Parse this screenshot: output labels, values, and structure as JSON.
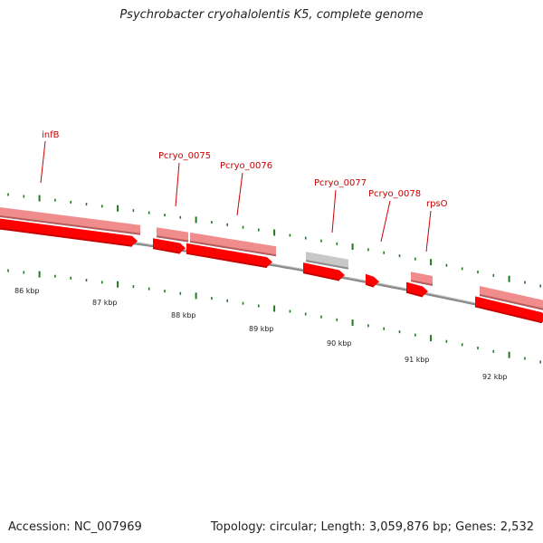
{
  "title": "Psychrobacter cryohalolentis K5, complete genome",
  "accession_text": "Accession: NC_007969",
  "summary_text": "Topology: circular; Length: 3,059,876 bp; Genes: 2,532",
  "colors": {
    "forward_gene": "#f08c8c",
    "forward_gene_edge": "#b25c5c",
    "cds": "#ff0000",
    "cds_dark": "#c80000",
    "hypothetical": "#c8c8c8",
    "backbone": "#888888",
    "tick_green": "#1f7a1f",
    "label_red": "#cc0000"
  },
  "scale_labels": [
    {
      "id": "86",
      "text": "86 kbp"
    },
    {
      "id": "87",
      "text": "87 kbp"
    },
    {
      "id": "88",
      "text": "88 kbp"
    },
    {
      "id": "89",
      "text": "89 kbp"
    },
    {
      "id": "90",
      "text": "90 kbp"
    },
    {
      "id": "91",
      "text": "91 kbp"
    },
    {
      "id": "92",
      "text": "92 kbp"
    }
  ],
  "gene_labels": [
    {
      "id": "infB",
      "text": "infB"
    },
    {
      "id": "pcryo0075",
      "text": "Pcryo_0075"
    },
    {
      "id": "pcryo0076",
      "text": "Pcryo_0076"
    },
    {
      "id": "pcryo0077",
      "text": "Pcryo_0077"
    },
    {
      "id": "pcryo0078",
      "text": "Pcryo_0078"
    },
    {
      "id": "rpsO",
      "text": "rpsO"
    }
  ]
}
